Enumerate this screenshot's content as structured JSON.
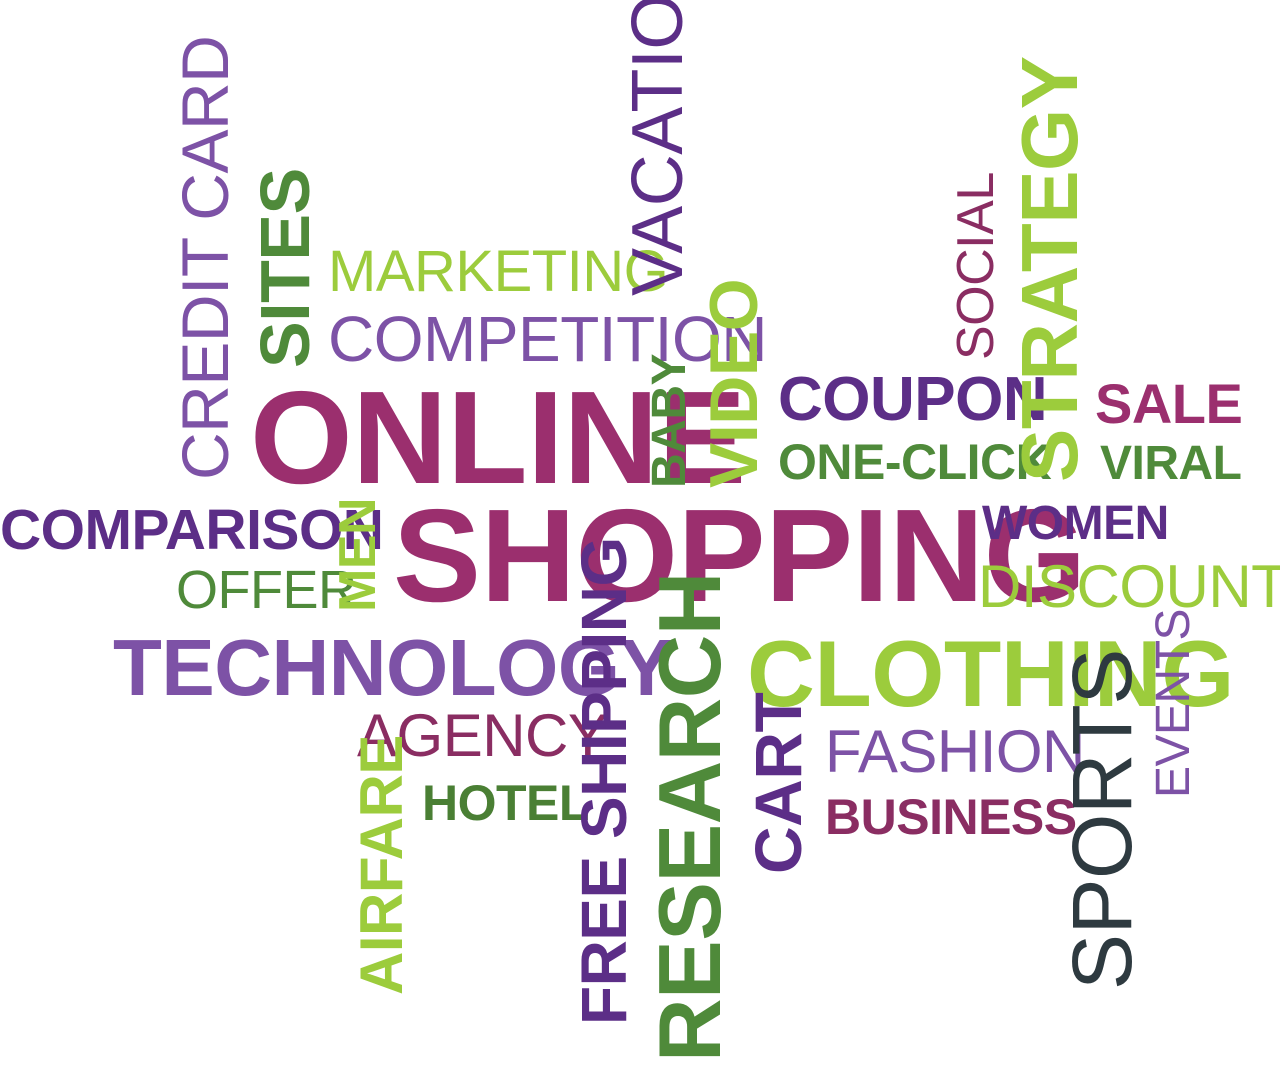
{
  "words": {
    "online": {
      "text": "ONLINE",
      "color": "#9b2f6e"
    },
    "shopping": {
      "text": "SHOPPING",
      "color": "#9b2f6e"
    },
    "comparison": {
      "text": "COMPARISON",
      "color": "#5c2e87"
    },
    "offer": {
      "text": "OFFER",
      "color": "#4f8a3a"
    },
    "technology": {
      "text": "TECHNOLOGY",
      "color": "#7d52a6"
    },
    "agency": {
      "text": "AGENCY",
      "color": "#8a2d62"
    },
    "hotel": {
      "text": "HOTEL",
      "color": "#4a7f34"
    },
    "marketing": {
      "text": "MARKETING",
      "color": "#9ccc3c"
    },
    "competition": {
      "text": "COMPETITION",
      "color": "#7d52a6"
    },
    "coupon": {
      "text": "COUPON",
      "color": "#5c2e87"
    },
    "oneclick": {
      "text": "ONE-CLICK",
      "color": "#4f8a3a"
    },
    "sale": {
      "text": "SALE",
      "color": "#9b2f6e"
    },
    "viral": {
      "text": "VIRAL",
      "color": "#4f8a3a"
    },
    "women": {
      "text": "WOMEN",
      "color": "#5c2e87"
    },
    "discounts": {
      "text": "DISCOUNTS",
      "color": "#9ccc3c"
    },
    "clothing": {
      "text": "CLOTHING",
      "color": "#9ccc3c"
    },
    "fashion": {
      "text": "FASHION",
      "color": "#7d52a6"
    },
    "business": {
      "text": "BUSINESS",
      "color": "#8a2d62"
    },
    "creditcard": {
      "text": "CREDIT CARD",
      "color": "#7d52a6"
    },
    "sites": {
      "text": "SITES",
      "color": "#4f8a3a"
    },
    "vacation": {
      "text": "VACATION",
      "color": "#5c2e87"
    },
    "baby": {
      "text": "BABY",
      "color": "#4f8a3a"
    },
    "video": {
      "text": "VIDEO",
      "color": "#9ccc3c"
    },
    "social": {
      "text": "SOCIAL",
      "color": "#8a2d62"
    },
    "strategy": {
      "text": "STRATEGY",
      "color": "#9ccc3c"
    },
    "men": {
      "text": "MEN",
      "color": "#9ccc3c"
    },
    "freeshipping": {
      "text": "FREE SHIPPING",
      "color": "#5c2e87"
    },
    "research": {
      "text": "RESEARCH",
      "color": "#4f8a3a"
    },
    "cart": {
      "text": "CART",
      "color": "#5c2e87"
    },
    "airfare": {
      "text": "AIRFARE",
      "color": "#9ccc3c"
    },
    "sports": {
      "text": "SPORTS",
      "color": "#2e3a40"
    },
    "events": {
      "text": "EVENTS",
      "color": "#7d52a6"
    }
  }
}
